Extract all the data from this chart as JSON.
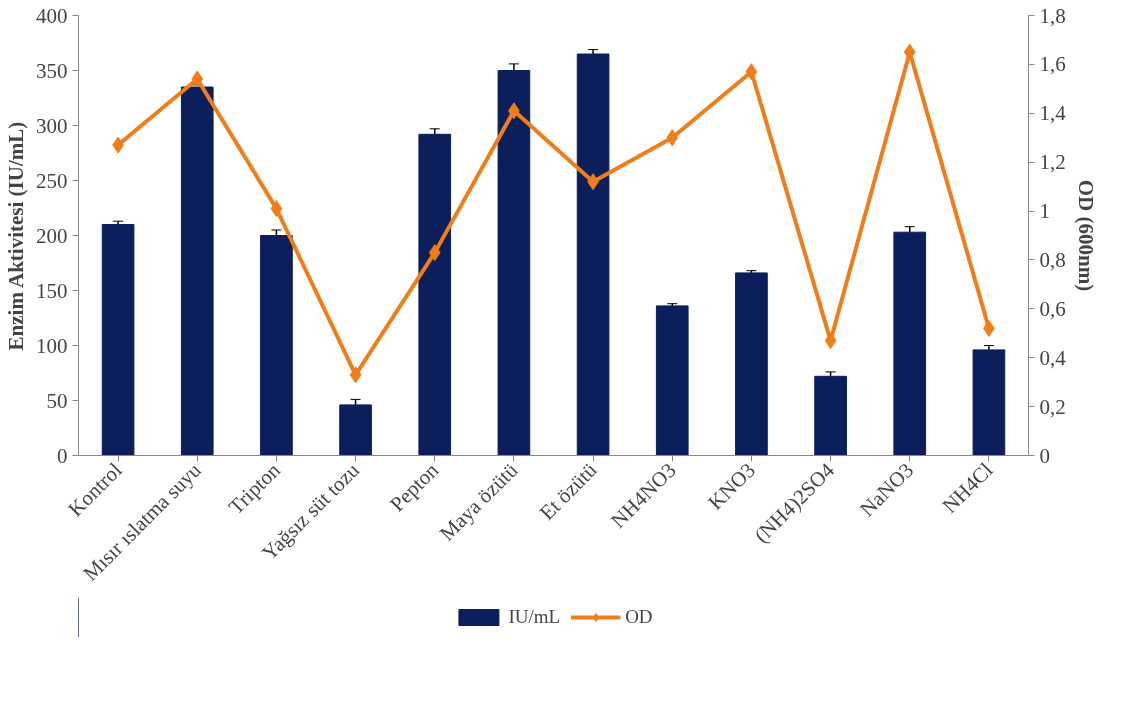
{
  "chart_data": {
    "type": "bar",
    "categories": [
      "Kontrol",
      "Mısır ıslatma suyu",
      "Tripton",
      "Yağsız süt tozu",
      "Pepton",
      "Maya özütü",
      "Et özütü",
      "NH4NO3",
      "KNO3",
      "(NH4)2SO4",
      "NaNO3",
      "NH4Cl"
    ],
    "series": [
      {
        "name": "IU/mL",
        "color": "#0c1f5b",
        "values": [
          210,
          335,
          200,
          46,
          292,
          350,
          365,
          136,
          166,
          72,
          203,
          96
        ],
        "errors": [
          3,
          2,
          5,
          5,
          5,
          6,
          4,
          2,
          2,
          4,
          5,
          4
        ]
      },
      {
        "name": "OD",
        "type": "line",
        "axis": "y2",
        "color": "#ef7d1a",
        "marker": "diamond",
        "values": [
          1.27,
          1.54,
          1.01,
          0.33,
          0.83,
          1.41,
          1.12,
          1.3,
          1.57,
          0.47,
          1.65,
          0.52
        ]
      }
    ],
    "ylabel": "Enzim Aktivitesi (IU/mL)",
    "y2label": "OD (600nm)",
    "ylim": [
      0,
      400
    ],
    "yticks": [
      0,
      50,
      100,
      150,
      200,
      250,
      300,
      350,
      400
    ],
    "y2lim": [
      0,
      1.8
    ],
    "y2ticks": [
      0,
      {
        "value": 0.2,
        "label": "0,2"
      },
      {
        "value": 0.4,
        "label": "0,4"
      },
      {
        "value": 0.6,
        "label": "0,6"
      },
      {
        "value": 0.8,
        "label": "0,8"
      },
      1,
      {
        "value": 1.2,
        "label": "1,2"
      },
      {
        "value": 1.4,
        "label": "1,4"
      },
      {
        "value": 1.6,
        "label": "1,6"
      },
      {
        "value": 1.8,
        "label": "1,8"
      }
    ],
    "legend": "bottom",
    "grid": false
  }
}
